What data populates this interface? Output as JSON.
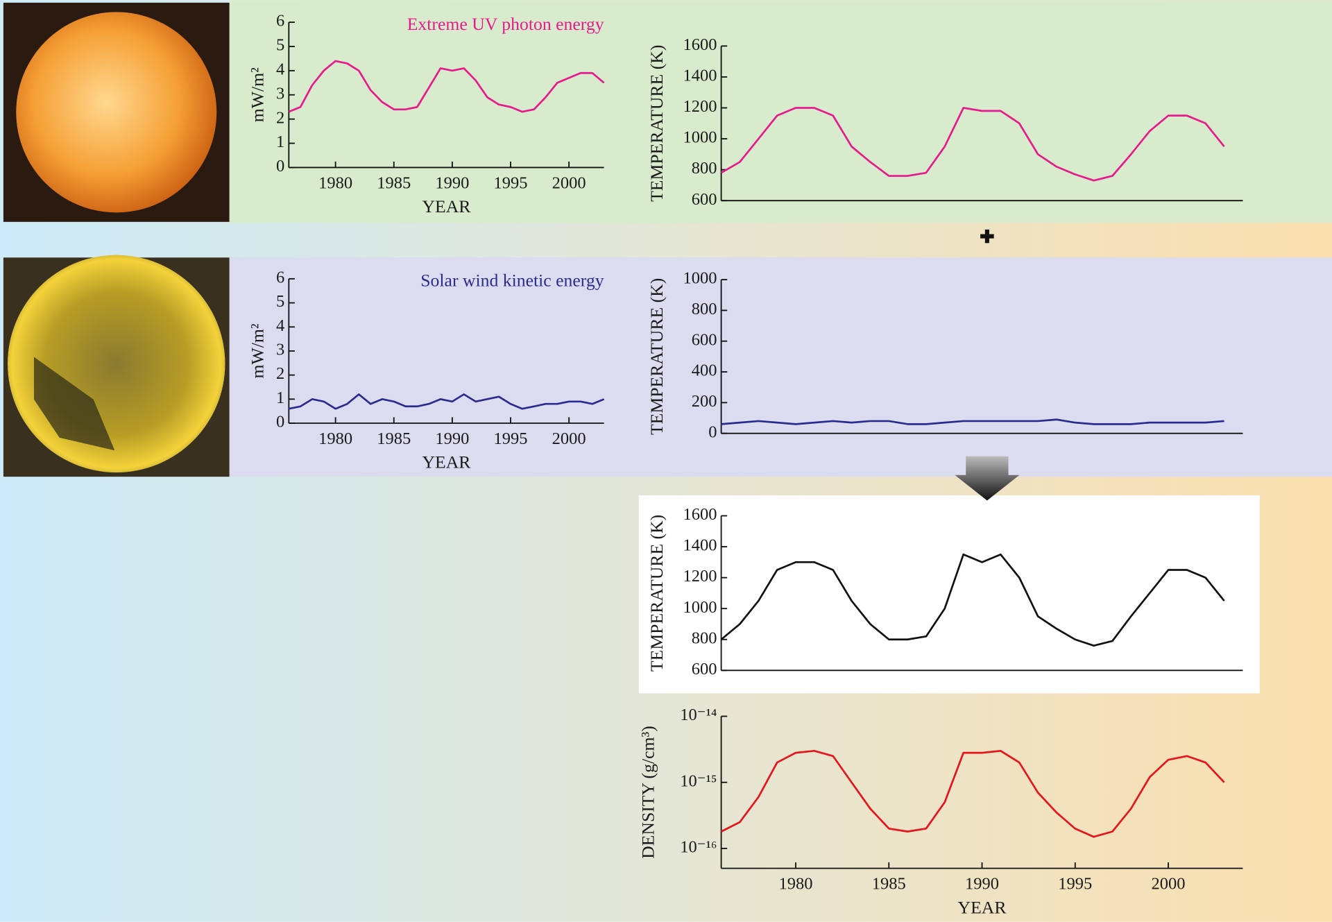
{
  "chart_data": [
    {
      "type": "line",
      "annotation": "Extreme UV photon energy",
      "color": "#e8198c",
      "x": [
        1976,
        1977,
        1978,
        1979,
        1980,
        1981,
        1982,
        1983,
        1984,
        1985,
        1986,
        1987,
        1988,
        1989,
        1990,
        1991,
        1992,
        1993,
        1994,
        1995,
        1996,
        1997,
        1998,
        1999,
        2000,
        2001,
        2002,
        2003
      ],
      "values": [
        2.3,
        2.5,
        3.4,
        4.0,
        4.4,
        4.3,
        4.0,
        3.2,
        2.7,
        2.4,
        2.4,
        2.5,
        3.3,
        4.1,
        4.0,
        4.1,
        3.6,
        2.9,
        2.6,
        2.5,
        2.3,
        2.4,
        2.9,
        3.5,
        3.7,
        3.9,
        3.9,
        3.5
      ],
      "xlabel": "YEAR",
      "ylabel": "mW/m²",
      "xlim": [
        1976,
        2003
      ],
      "xticks": [
        1980,
        1985,
        1990,
        1995,
        2000
      ],
      "ylim": [
        0,
        6
      ],
      "yticks": [
        0,
        1,
        2,
        3,
        4,
        5,
        6
      ]
    },
    {
      "type": "line",
      "color": "#e8198c",
      "x": [
        1976,
        1977,
        1978,
        1979,
        1980,
        1981,
        1982,
        1983,
        1984,
        1985,
        1986,
        1987,
        1988,
        1989,
        1990,
        1991,
        1992,
        1993,
        1994,
        1995,
        1996,
        1997,
        1998,
        1999,
        2000,
        2001,
        2002,
        2003
      ],
      "values": [
        780,
        850,
        1000,
        1150,
        1200,
        1200,
        1150,
        950,
        850,
        760,
        760,
        780,
        950,
        1200,
        1180,
        1180,
        1100,
        900,
        820,
        770,
        730,
        760,
        900,
        1050,
        1150,
        1150,
        1100,
        950
      ],
      "ylabel": "TEMPERATURE (K)",
      "xlim": [
        1976,
        2004
      ],
      "ylim": [
        600,
        1600
      ],
      "yticks": [
        600,
        800,
        1000,
        1200,
        1400,
        1600
      ]
    },
    {
      "type": "line",
      "annotation": "Solar wind kinetic energy",
      "color": "#2b2b8f",
      "x": [
        1976,
        1977,
        1978,
        1979,
        1980,
        1981,
        1982,
        1983,
        1984,
        1985,
        1986,
        1987,
        1988,
        1989,
        1990,
        1991,
        1992,
        1993,
        1994,
        1995,
        1996,
        1997,
        1998,
        1999,
        2000,
        2001,
        2002,
        2003
      ],
      "values": [
        0.6,
        0.7,
        1.0,
        0.9,
        0.6,
        0.8,
        1.2,
        0.8,
        1.0,
        0.9,
        0.7,
        0.7,
        0.8,
        1.0,
        0.9,
        1.2,
        0.9,
        1.0,
        1.1,
        0.8,
        0.6,
        0.7,
        0.8,
        0.8,
        0.9,
        0.9,
        0.8,
        1.0
      ],
      "xlabel": "YEAR",
      "ylabel": "mW/m²",
      "xlim": [
        1976,
        2003
      ],
      "xticks": [
        1980,
        1985,
        1990,
        1995,
        2000
      ],
      "ylim": [
        0,
        6
      ],
      "yticks": [
        0,
        1,
        2,
        3,
        4,
        5,
        6
      ]
    },
    {
      "type": "line",
      "color": "#2b2b8f",
      "x": [
        1976,
        1977,
        1978,
        1979,
        1980,
        1981,
        1982,
        1983,
        1984,
        1985,
        1986,
        1987,
        1988,
        1989,
        1990,
        1991,
        1992,
        1993,
        1994,
        1995,
        1996,
        1997,
        1998,
        1999,
        2000,
        2001,
        2002,
        2003
      ],
      "values": [
        60,
        70,
        80,
        70,
        60,
        70,
        80,
        70,
        80,
        80,
        60,
        60,
        70,
        80,
        80,
        80,
        80,
        80,
        90,
        70,
        60,
        60,
        60,
        70,
        70,
        70,
        70,
        80
      ],
      "ylabel": "TEMPERATURE (K)",
      "xlim": [
        1976,
        2004
      ],
      "ylim": [
        0,
        1000
      ],
      "yticks": [
        0,
        200,
        400,
        600,
        800,
        1000
      ]
    },
    {
      "type": "line",
      "color": "#111111",
      "x": [
        1976,
        1977,
        1978,
        1979,
        1980,
        1981,
        1982,
        1983,
        1984,
        1985,
        1986,
        1987,
        1988,
        1989,
        1990,
        1991,
        1992,
        1993,
        1994,
        1995,
        1996,
        1997,
        1998,
        1999,
        2000,
        2001,
        2002,
        2003
      ],
      "values": [
        800,
        900,
        1050,
        1250,
        1300,
        1300,
        1250,
        1050,
        900,
        800,
        800,
        820,
        1000,
        1350,
        1300,
        1350,
        1200,
        950,
        870,
        800,
        760,
        790,
        950,
        1100,
        1250,
        1250,
        1200,
        1050
      ],
      "ylabel": "TEMPERATURE (K)",
      "xlim": [
        1976,
        2004
      ],
      "ylim": [
        600,
        1600
      ],
      "yticks": [
        600,
        800,
        1000,
        1200,
        1400,
        1600
      ]
    },
    {
      "type": "line",
      "color": "#e8141c",
      "log_y": true,
      "x": [
        1976,
        1977,
        1978,
        1979,
        1980,
        1981,
        1982,
        1983,
        1984,
        1985,
        1986,
        1987,
        1988,
        1989,
        1990,
        1991,
        1992,
        1993,
        1994,
        1995,
        1996,
        1997,
        1998,
        1999,
        2000,
        2001,
        2002,
        2003
      ],
      "values": [
        1.8e-16,
        2.5e-16,
        6e-16,
        2e-15,
        2.8e-15,
        3e-15,
        2.5e-15,
        1e-15,
        4e-16,
        2e-16,
        1.8e-16,
        2e-16,
        5e-16,
        2.8e-15,
        2.8e-15,
        3e-15,
        2e-15,
        7e-16,
        3.5e-16,
        2e-16,
        1.5e-16,
        1.8e-16,
        4e-16,
        1.2e-15,
        2.2e-15,
        2.5e-15,
        2e-15,
        1e-15
      ],
      "xlabel": "YEAR",
      "ylabel": "DENSITY (g/cm³)",
      "xlim": [
        1976,
        2004
      ],
      "xticks": [
        1980,
        1985,
        1990,
        1995,
        2000
      ],
      "ylim": [
        5e-17,
        1e-14
      ],
      "yticks": [
        {
          "value": 1e-16,
          "label": "10⁻¹⁶"
        },
        {
          "value": 1e-15,
          "label": "10⁻¹⁵"
        },
        {
          "value": 1e-14,
          "label": "10⁻¹⁴"
        }
      ]
    }
  ]
}
